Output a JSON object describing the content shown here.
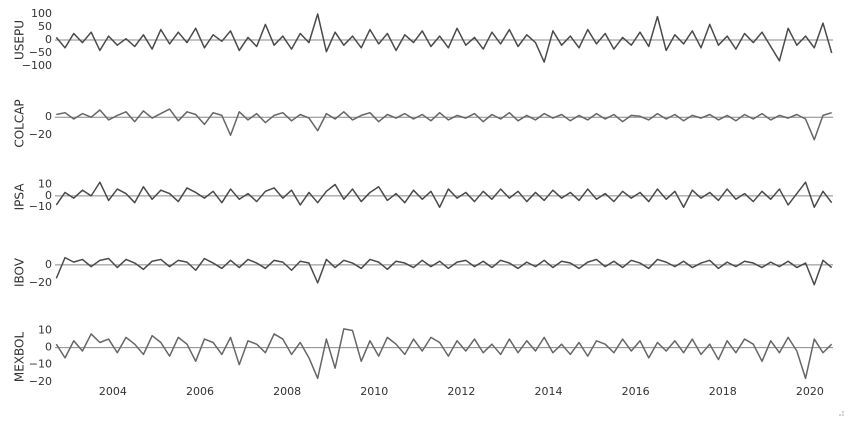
{
  "chart_data": {
    "type": "line",
    "xlim": [
      2002.67,
      2020.53
    ],
    "xticks": [
      2004,
      2006,
      2008,
      2010,
      2012,
      2014,
      2016,
      2018,
      2020
    ],
    "x": [
      2002.7,
      2002.9,
      2003.1,
      2003.3,
      2003.5,
      2003.7,
      2003.9,
      2004.1,
      2004.3,
      2004.5,
      2004.7,
      2004.9,
      2005.1,
      2005.3,
      2005.5,
      2005.7,
      2005.9,
      2006.1,
      2006.3,
      2006.5,
      2006.7,
      2006.9,
      2007.1,
      2007.3,
      2007.5,
      2007.7,
      2007.9,
      2008.1,
      2008.3,
      2008.5,
      2008.7,
      2008.9,
      2009.1,
      2009.3,
      2009.5,
      2009.7,
      2009.9,
      2010.1,
      2010.3,
      2010.5,
      2010.7,
      2010.9,
      2011.1,
      2011.3,
      2011.5,
      2011.7,
      2011.9,
      2012.1,
      2012.3,
      2012.5,
      2012.7,
      2012.9,
      2013.1,
      2013.3,
      2013.5,
      2013.7,
      2013.9,
      2014.1,
      2014.3,
      2014.5,
      2014.7,
      2014.9,
      2015.1,
      2015.3,
      2015.5,
      2015.7,
      2015.9,
      2016.1,
      2016.3,
      2016.5,
      2016.7,
      2016.9,
      2017.1,
      2017.3,
      2017.5,
      2017.7,
      2017.9,
      2018.1,
      2018.3,
      2018.5,
      2018.7,
      2018.9,
      2019.1,
      2019.3,
      2019.5,
      2019.7,
      2019.9,
      2020.1,
      2020.3,
      2020.5
    ],
    "series": [
      {
        "name": "USEPU",
        "color": "#4a4a4a",
        "ylim": [
          -123,
          123
        ],
        "yticks": [
          100,
          50,
          0,
          {
            "value": -50,
            "label": "−50"
          },
          {
            "value": -100,
            "label": "−100"
          }
        ],
        "values": [
          10,
          -30,
          25,
          -10,
          30,
          -40,
          15,
          -20,
          5,
          -25,
          20,
          -35,
          40,
          -15,
          30,
          -10,
          45,
          -30,
          20,
          -5,
          35,
          -40,
          10,
          -25,
          60,
          -20,
          15,
          -35,
          25,
          -10,
          100,
          -45,
          30,
          -20,
          15,
          -30,
          40,
          -15,
          25,
          -40,
          20,
          -10,
          35,
          -25,
          15,
          -30,
          45,
          -20,
          10,
          -35,
          30,
          -15,
          40,
          -25,
          20,
          -10,
          -85,
          35,
          -20,
          15,
          -30,
          40,
          -15,
          25,
          -35,
          10,
          -20,
          30,
          -25,
          90,
          -40,
          20,
          -15,
          35,
          -30,
          60,
          -20,
          15,
          -35,
          25,
          -10,
          30,
          -25,
          -80,
          45,
          -20,
          15,
          -30,
          65,
          -50
        ]
      },
      {
        "name": "COLCAP",
        "color": "#666666",
        "ylim": [
          -42,
          28
        ],
        "yticks": [
          0,
          {
            "value": -20,
            "label": "−20"
          }
        ],
        "values": [
          3,
          5,
          -2,
          4,
          0,
          8,
          -3,
          2,
          6,
          -5,
          7,
          -1,
          4,
          9,
          -4,
          6,
          3,
          -8,
          5,
          2,
          -20,
          6,
          -3,
          4,
          -6,
          2,
          5,
          -4,
          3,
          -1,
          -15,
          4,
          -2,
          6,
          -3,
          2,
          5,
          -5,
          3,
          -1,
          4,
          -2,
          3,
          -4,
          5,
          -3,
          2,
          -1,
          4,
          -5,
          3,
          -2,
          5,
          -4,
          2,
          -3,
          4,
          -1,
          3,
          -4,
          2,
          -3,
          4,
          -2,
          3,
          -5,
          2,
          1,
          -3,
          4,
          -2,
          3,
          -4,
          2,
          -1,
          3,
          -3,
          2,
          -4,
          3,
          -2,
          4,
          -3,
          2,
          -1,
          3,
          -2,
          -25,
          2,
          5
        ]
      },
      {
        "name": "IPSA",
        "color": "#4a4a4a",
        "ylim": [
          -23,
          21
        ],
        "yticks": [
          10,
          0,
          {
            "value": -10,
            "label": "−10"
          }
        ],
        "values": [
          -8,
          3,
          -2,
          5,
          0,
          12,
          -4,
          6,
          2,
          -6,
          8,
          -3,
          5,
          2,
          -5,
          7,
          3,
          -2,
          4,
          -6,
          6,
          -3,
          2,
          -5,
          4,
          7,
          -2,
          5,
          -8,
          3,
          -6,
          4,
          10,
          -3,
          6,
          -5,
          3,
          8,
          -4,
          2,
          -6,
          5,
          -3,
          4,
          -10,
          6,
          -2,
          3,
          -5,
          4,
          -3,
          6,
          -2,
          4,
          -5,
          3,
          -4,
          5,
          -2,
          3,
          -4,
          6,
          -3,
          2,
          -5,
          4,
          -2,
          3,
          -5,
          6,
          -3,
          4,
          -10,
          5,
          -2,
          3,
          -4,
          6,
          -3,
          2,
          -5,
          4,
          -3,
          6,
          -8,
          2,
          12,
          -10,
          4,
          -6
        ]
      },
      {
        "name": "IBOV",
        "color": "#4a4a4a",
        "ylim": [
          -39,
          22
        ],
        "yticks": [
          0,
          {
            "value": -20,
            "label": "−20"
          }
        ],
        "values": [
          -15,
          8,
          3,
          6,
          -2,
          5,
          7,
          -3,
          6,
          2,
          -5,
          4,
          6,
          -2,
          5,
          3,
          -6,
          7,
          2,
          -4,
          5,
          -3,
          6,
          2,
          -4,
          5,
          3,
          -6,
          4,
          2,
          -20,
          6,
          -3,
          5,
          2,
          -4,
          6,
          3,
          -5,
          4,
          2,
          -3,
          5,
          -2,
          4,
          -4,
          3,
          5,
          -2,
          4,
          -3,
          5,
          2,
          -4,
          3,
          -2,
          5,
          -3,
          4,
          2,
          -4,
          3,
          6,
          -2,
          4,
          -3,
          5,
          2,
          -4,
          6,
          3,
          -2,
          4,
          -3,
          2,
          5,
          -4,
          3,
          -2,
          4,
          2,
          -3,
          3,
          -2,
          4,
          -3,
          2,
          -22,
          5,
          -3
        ]
      },
      {
        "name": "MEXBOL",
        "color": "#666666",
        "ylim": [
          -26,
          15
        ],
        "yticks": [
          10,
          0,
          {
            "value": -10,
            "label": "−10"
          },
          {
            "value": -20,
            "label": "−20"
          }
        ],
        "values": [
          2,
          -6,
          4,
          -2,
          8,
          3,
          5,
          -3,
          6,
          2,
          -4,
          7,
          3,
          -5,
          6,
          2,
          -8,
          5,
          3,
          -4,
          6,
          -10,
          4,
          2,
          -3,
          8,
          5,
          -4,
          3,
          -6,
          -18,
          5,
          -12,
          11,
          10,
          -8,
          4,
          -5,
          6,
          2,
          -4,
          5,
          -2,
          6,
          3,
          -5,
          4,
          -2,
          5,
          -3,
          2,
          -4,
          5,
          -3,
          4,
          -2,
          6,
          -3,
          2,
          -4,
          3,
          -5,
          4,
          2,
          -3,
          5,
          -2,
          4,
          -6,
          3,
          -2,
          4,
          -3,
          5,
          -4,
          2,
          -7,
          4,
          -3,
          5,
          2,
          -8,
          4,
          -3,
          6,
          -2,
          -18,
          5,
          -3,
          2
        ]
      }
    ]
  }
}
